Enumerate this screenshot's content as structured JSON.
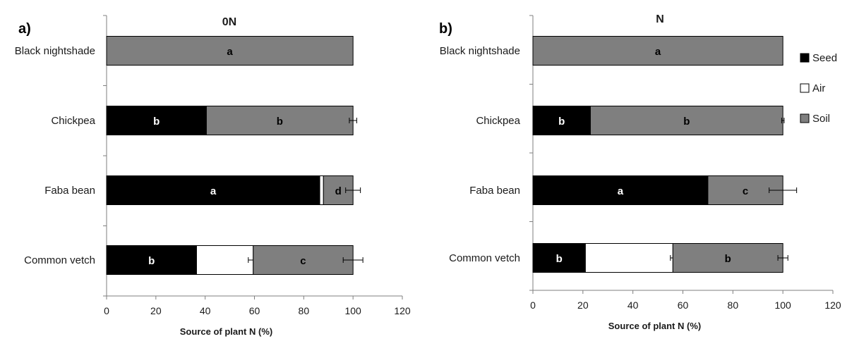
{
  "colors": {
    "seed": "#000000",
    "air": "#ffffff",
    "soil": "#7f7f7f",
    "axis": "#7f7f7f"
  },
  "chart_data": [
    {
      "type": "bar",
      "orientation": "horizontal",
      "stacked": true,
      "panel_label": "a)",
      "title": "0N",
      "xlabel": "Source of plant N (%)",
      "xlim": [
        0,
        120
      ],
      "xticks": [
        0,
        20,
        40,
        60,
        80,
        100,
        120
      ],
      "categories": [
        "Black nightshade",
        "Chickpea",
        "Faba bean",
        "Common vetch"
      ],
      "series": [
        {
          "name": "Seed",
          "values": [
            0,
            40.5,
            86.5,
            36.5
          ],
          "errors": [
            0,
            0,
            0,
            3
          ],
          "letters": [
            "",
            "b",
            "a",
            "b"
          ]
        },
        {
          "name": "Air",
          "values": [
            0,
            0,
            1.5,
            23
          ],
          "errors": [
            0,
            0,
            0,
            2
          ],
          "letters": [
            "",
            "",
            "",
            ""
          ]
        },
        {
          "name": "Soil",
          "values": [
            100,
            59.5,
            12,
            40.5
          ],
          "errors": [
            0,
            1.5,
            3,
            4
          ],
          "letters": [
            "a",
            "b",
            "d",
            "c"
          ]
        }
      ]
    },
    {
      "type": "bar",
      "orientation": "horizontal",
      "stacked": true,
      "panel_label": "b)",
      "title": "N",
      "xlabel": "Source of plant N (%)",
      "xlim": [
        0,
        120
      ],
      "xticks": [
        0,
        20,
        40,
        60,
        80,
        100,
        120
      ],
      "legend": {
        "position": "right",
        "entries": [
          "Seed",
          "Air",
          "Soil"
        ]
      },
      "categories": [
        "Black nightshade",
        "Chickpea",
        "Faba bean",
        "Common vetch"
      ],
      "series": [
        {
          "name": "Seed",
          "values": [
            0,
            23,
            70,
            21
          ],
          "errors": [
            0,
            0.5,
            6,
            2
          ],
          "letters": [
            "",
            "b",
            "a",
            "b"
          ]
        },
        {
          "name": "Air",
          "values": [
            0,
            0,
            0,
            35
          ],
          "errors": [
            0,
            0,
            0,
            1
          ],
          "letters": [
            "",
            "",
            "",
            ""
          ]
        },
        {
          "name": "Soil",
          "values": [
            100,
            77,
            30,
            44
          ],
          "errors": [
            0,
            0.5,
            5.5,
            2
          ],
          "letters": [
            "a",
            "b",
            "c",
            "b"
          ]
        }
      ]
    }
  ]
}
